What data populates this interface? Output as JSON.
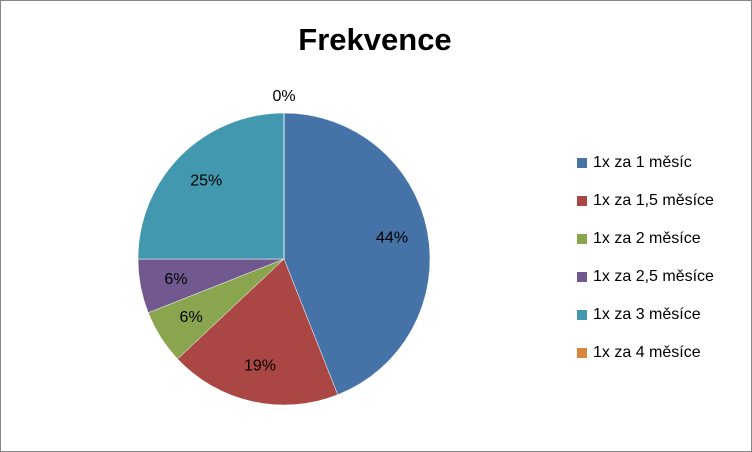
{
  "chart_data": {
    "type": "pie",
    "title": "Frekvence",
    "categories": [
      "1x za 1 měsíc",
      "1x za 1,5 měsíce",
      "1x za 2 měsíce",
      "1x za 2,5 měsíce",
      "1x za 3 měsíce",
      "1x za 4 měsíce"
    ],
    "values": [
      44,
      19,
      6,
      6,
      25,
      0
    ],
    "value_labels": [
      "44%",
      "19%",
      "6%",
      "6%",
      "25%",
      "0%"
    ],
    "colors": [
      "#4572a7",
      "#aa4643",
      "#89a54e",
      "#71588f",
      "#4198af",
      "#db843d"
    ],
    "legend": "right"
  }
}
